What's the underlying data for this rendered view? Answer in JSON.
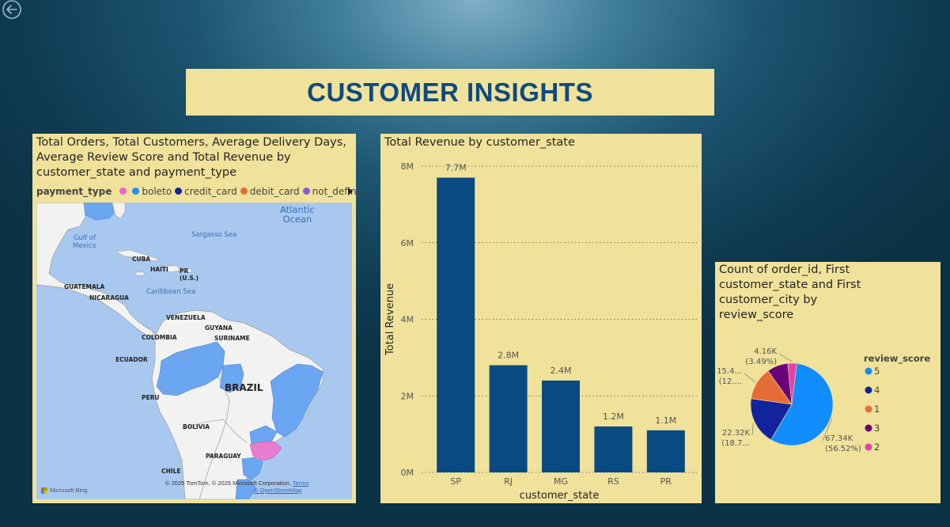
{
  "page": {
    "title": "CUSTOMER INSIGHTS"
  },
  "map_visual": {
    "title": "Total Orders, Total Customers, Average Delivery Days, Average Review Score and Total Revenue by customer_state and payment_type",
    "legend": {
      "title": "payment_type",
      "items": [
        {
          "label": "",
          "color": "#e866c4"
        },
        {
          "label": "boleto",
          "color": "#1f8ff0"
        },
        {
          "label": "credit_card",
          "color": "#12239e"
        },
        {
          "label": "debit_card",
          "color": "#e66c37"
        },
        {
          "label": "not_defin...",
          "color": "#8e5bd8"
        }
      ]
    },
    "labels": {
      "atlantic": "Atlantic\nOcean",
      "gulf": "Gulf of\nMexico",
      "sargasso": "Sargasso Sea",
      "caribbean": "Caribbean Sea",
      "cuba": "CUBA",
      "haiti": "HAITI",
      "pr": "PR\n(U.S.)",
      "guatemala": "GUATEMALA",
      "nicaragua": "NICARAGUA",
      "venezuela": "VENEZUELA",
      "guyana": "GUYANA",
      "suriname": "SURINAME",
      "colombia": "COLOMBIA",
      "ecuador": "ECUADOR",
      "brazil": "BRAZIL",
      "peru": "PERU",
      "bolivia": "BOLIVIA",
      "paraguay": "PARAGUAY",
      "chile": "CHILE"
    },
    "copyright": "© 2025 TomTom, © 2025 Microsoft Corporation,",
    "terms": "Terms",
    "osm": "© OpenStreetMap",
    "bing": "Microsoft Bing"
  },
  "chart_data": [
    {
      "type": "bar",
      "title": "Total Revenue by customer_state",
      "xlabel": "customer_state",
      "ylabel": "Total Revenue",
      "categories": [
        "SP",
        "RJ",
        "MG",
        "RS",
        "PR"
      ],
      "values": [
        7.7,
        2.8,
        2.4,
        1.2,
        1.1
      ],
      "data_labels": [
        "7.7M",
        "2.8M",
        "2.4M",
        "1.2M",
        "1.1M"
      ],
      "y_ticks": [
        {
          "value": 0,
          "label": "0M"
        },
        {
          "value": 2,
          "label": "2M"
        },
        {
          "value": 4,
          "label": "4M"
        },
        {
          "value": 6,
          "label": "6M"
        },
        {
          "value": 8,
          "label": "8M"
        }
      ],
      "ylim": [
        0,
        8
      ],
      "unit": "M",
      "color": "#0a4a82",
      "grid": true
    },
    {
      "type": "pie",
      "title": "Count of order_id, First customer_state and First customer_city by review_score",
      "legend_title": "review_score",
      "slices": [
        {
          "label": "5",
          "value": 67.34,
          "value_label": "67.34K",
          "pct_label": "(56.52%)",
          "color": "#118dff"
        },
        {
          "label": "4",
          "value": 22.32,
          "value_label": "22.32K",
          "pct_label": "(18.7...",
          "color": "#12239e"
        },
        {
          "label": "1",
          "value": 15.4,
          "value_label": "15.4...",
          "pct_label": "(12....",
          "color": "#e66c37"
        },
        {
          "label": "3",
          "value": 9.8,
          "value_label": "",
          "pct_label": "",
          "color": "#6b007b"
        },
        {
          "label": "2",
          "value": 4.16,
          "value_label": "4.16K",
          "pct_label": "(3.49%)",
          "color": "#e044a7"
        }
      ]
    }
  ]
}
